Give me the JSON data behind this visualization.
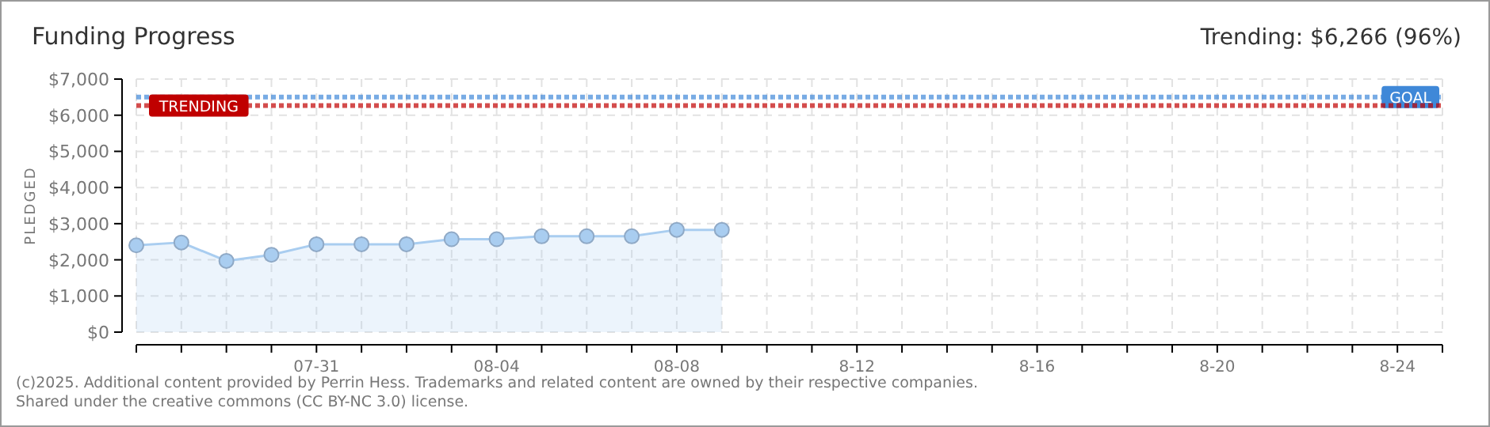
{
  "chart_data": {
    "type": "area",
    "title": "Funding Progress",
    "subtitle": "Trending: $6,266 (96%)",
    "ylabel": "PLEDGED",
    "categories": [
      null,
      null,
      null,
      null,
      "07-31",
      null,
      null,
      null,
      "08-04",
      null,
      null,
      null,
      "08-08",
      null,
      null,
      null,
      "8-12",
      null,
      null,
      null,
      "8-16",
      null,
      null,
      null,
      "8-20",
      null,
      null,
      null,
      "8-24",
      null
    ],
    "series": [
      {
        "color": "#a9cdf0",
        "values": [
          2400,
          2480,
          1970,
          2140,
          2430,
          2430,
          2430,
          2570,
          2570,
          2650,
          2650,
          2650,
          2830,
          2830,
          null,
          null,
          null,
          null,
          null,
          null,
          null,
          null,
          null,
          null,
          null,
          null,
          null,
          null,
          null,
          null
        ]
      }
    ],
    "ylim": [
      0,
      7000
    ],
    "yticks": [
      {
        "value": 0,
        "label": "$0"
      },
      {
        "value": 1000,
        "label": "$1,000"
      },
      {
        "value": 2000,
        "label": "$2,000"
      },
      {
        "value": 3000,
        "label": "$3,000"
      },
      {
        "value": 4000,
        "label": "$4,000"
      },
      {
        "value": 5000,
        "label": "$5,000"
      },
      {
        "value": 6000,
        "label": "$6,000"
      },
      {
        "value": 7000,
        "label": "$7,000"
      }
    ],
    "ref_lines": [
      {
        "axis": "y",
        "value": 6500,
        "label": "GOAL",
        "color": "#3f88d8",
        "line_style": "dotted"
      },
      {
        "axis": "y",
        "value": 6266,
        "label": "TRENDING",
        "color": "#c00000",
        "line_style": "dotted"
      }
    ],
    "annotations": [
      "(c)2025. Additional content provided by Perrin Hess. Trademarks and related content are owned by their respective companies.",
      "Shared under the creative commons (CC BY-NC 3.0) license."
    ],
    "grid": true,
    "marker": "circle"
  }
}
